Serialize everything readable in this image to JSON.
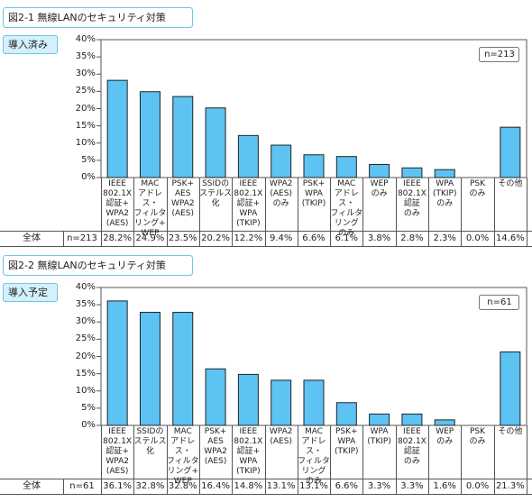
{
  "chart_data": [
    {
      "type": "bar",
      "title": "図2-1 無線LANのセキュリティ対策",
      "tag": "導入済み",
      "n_label": "n=213",
      "row_label": "全体",
      "row_n": "n=213",
      "color": "#5cc3f2",
      "categories": [
        "IEEE\n802.1X\n認証+\nWPA2\n(AES)",
        "MAC\nアドレス・\nフィルタ\nリング+\nWEP",
        "PSK+\nAES\nWPA2\n(AES)",
        "SSIDの\nステルス\n化",
        "IEEE\n802.1X\n認証+\nWPA\n(TKIP)",
        "WPA2\n(AES)\nのみ",
        "PSK+\nWPA\n(TKIP)",
        "MAC\nアドレス・\nフィルタ\nリング\nのみ",
        "WEP\nのみ",
        "IEEE\n802.1X\n認証\nのみ",
        "WPA\n(TKIP)\nのみ",
        "PSK\nのみ",
        "その他"
      ],
      "values": [
        28.2,
        24.9,
        23.5,
        20.2,
        12.2,
        9.4,
        6.6,
        6.1,
        3.8,
        2.8,
        2.3,
        0.0,
        14.6
      ],
      "value_labels": [
        "28.2%",
        "24.9%",
        "23.5%",
        "20.2%",
        "12.2%",
        "9.4%",
        "6.6%",
        "6.1%",
        "3.8%",
        "2.8%",
        "2.3%",
        "0.0%",
        "14.6%"
      ],
      "ylim": [
        0,
        40
      ],
      "yticks": [
        {
          "value": 0,
          "label": "0%"
        },
        {
          "value": 5,
          "label": "5%"
        },
        {
          "value": 10,
          "label": "10%"
        },
        {
          "value": 15,
          "label": "15%"
        },
        {
          "value": 20,
          "label": "20%"
        },
        {
          "value": 25,
          "label": "25%"
        },
        {
          "value": 30,
          "label": "30%"
        },
        {
          "value": 35,
          "label": "35%"
        },
        {
          "value": 40,
          "label": "40%"
        }
      ]
    },
    {
      "type": "bar",
      "title": "図2-2 無線LANのセキュリティ対策",
      "tag": "導入予定",
      "n_label": "n=61",
      "row_label": "全体",
      "row_n": "n=61",
      "color": "#5cc3f2",
      "categories": [
        "IEEE\n802.1X\n認証+\nWPA2\n(AES)",
        "SSIDの\nステルス\n化",
        "MAC\nアドレス・\nフィルタ\nリング+\nWEP",
        "PSK+\nAES\nWPA2\n(AES)",
        "IEEE\n802.1X\n認証+\nWPA\n(TKIP)",
        "WPA2\n(AES)",
        "MAC\nアドレス・\nフィルタ\nリング\nのみ",
        "PSK+\nWPA\n(TKIP)",
        "WPA\n(TKIP)",
        "IEEE\n802.1X\n認証\nのみ",
        "WEP\nのみ",
        "PSK\nのみ",
        "その他"
      ],
      "values": [
        36.1,
        32.8,
        32.8,
        16.4,
        14.8,
        13.1,
        13.1,
        6.6,
        3.3,
        3.3,
        1.6,
        0.0,
        21.3
      ],
      "value_labels": [
        "36.1%",
        "32.8%",
        "32.8%",
        "16.4%",
        "14.8%",
        "13.1%",
        "13.1%",
        "6.6%",
        "3.3%",
        "3.3%",
        "1.6%",
        "0.0%",
        "21.3%"
      ],
      "ylim": [
        0,
        40
      ],
      "yticks": [
        {
          "value": 0,
          "label": "0%"
        },
        {
          "value": 5,
          "label": "5%"
        },
        {
          "value": 10,
          "label": "10%"
        },
        {
          "value": 15,
          "label": "15%"
        },
        {
          "value": 20,
          "label": "20%"
        },
        {
          "value": 25,
          "label": "25%"
        },
        {
          "value": 30,
          "label": "30%"
        },
        {
          "value": 35,
          "label": "35%"
        },
        {
          "value": 40,
          "label": "40%"
        }
      ]
    }
  ]
}
